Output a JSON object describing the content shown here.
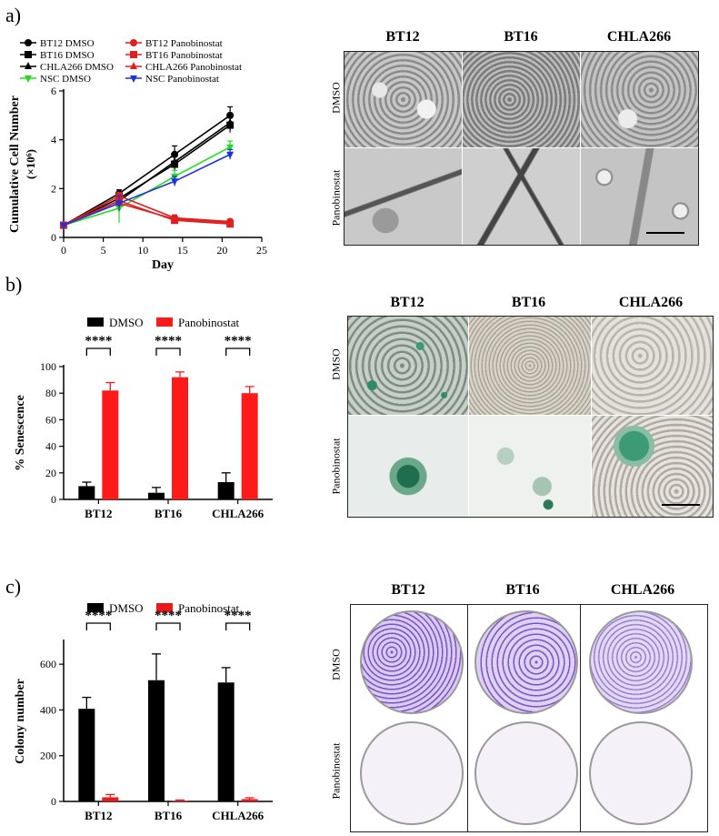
{
  "panel_labels": {
    "a": "a)",
    "b": "b)",
    "c": "c)"
  },
  "micrograph_panels": {
    "a": {
      "columns": [
        "BT12",
        "BT16",
        "CHLA266"
      ],
      "rows": [
        "DMSO",
        "Panobinostat"
      ]
    },
    "b": {
      "columns": [
        "BT12",
        "BT16",
        "CHLA266"
      ],
      "rows": [
        "DMSO",
        "Panobinostat"
      ]
    },
    "c": {
      "columns": [
        "BT12",
        "BT16",
        "CHLA266"
      ],
      "rows": [
        "DMSO",
        "Panobinostat"
      ]
    }
  },
  "chart_data": [
    {
      "type": "line",
      "xlabel": "Day",
      "ylabel": "Cumulative Cell Number",
      "ylabel_unit": "(×10⁶)",
      "xlim": [
        0,
        25
      ],
      "ylim": [
        0,
        6
      ],
      "xticks": [
        0,
        5,
        10,
        15,
        20,
        25
      ],
      "yticks": [
        0,
        2,
        4,
        6
      ],
      "x": [
        0,
        7,
        14,
        21
      ],
      "legend_position": "top",
      "series": [
        {
          "name": "BT12 DMSO",
          "color": "#000000",
          "marker": "circle",
          "values": [
            0.5,
            1.8,
            3.4,
            5.0
          ],
          "err": [
            0.05,
            0.15,
            0.35,
            0.35
          ]
        },
        {
          "name": "BT16 DMSO",
          "color": "#000000",
          "marker": "square",
          "values": [
            0.5,
            1.6,
            3.0,
            4.6
          ],
          "err": [
            0.05,
            0.15,
            0.3,
            0.3
          ]
        },
        {
          "name": "CHLA266 DMSO",
          "color": "#000000",
          "marker": "triangle",
          "values": [
            0.5,
            1.5,
            3.1,
            4.7
          ],
          "err": [
            0.05,
            0.15,
            0.3,
            0.3
          ]
        },
        {
          "name": "NSC DMSO",
          "color": "#22dd22",
          "marker": "triangle-down",
          "values": [
            0.5,
            1.2,
            2.5,
            3.7
          ],
          "err": [
            0.05,
            0.6,
            0.25,
            0.25
          ]
        },
        {
          "name": "BT12 Panobinostat",
          "color": "#e02020",
          "marker": "circle",
          "values": [
            0.5,
            1.7,
            0.8,
            0.65
          ],
          "err": [
            0.05,
            0.15,
            0.12,
            0.1
          ]
        },
        {
          "name": "BT16 Panobinostat",
          "color": "#e02020",
          "marker": "square",
          "values": [
            0.5,
            1.5,
            0.7,
            0.55
          ],
          "err": [
            0.05,
            0.15,
            0.1,
            0.1
          ]
        },
        {
          "name": "CHLA266 Panobinostat",
          "color": "#e02020",
          "marker": "triangle",
          "values": [
            0.5,
            1.4,
            0.75,
            0.6
          ],
          "err": [
            0.05,
            0.15,
            0.1,
            0.1
          ]
        },
        {
          "name": "NSC Panobinostat",
          "color": "#2030dd",
          "marker": "triangle-down",
          "values": [
            0.5,
            1.4,
            2.3,
            3.4
          ],
          "err": [
            0.05,
            0.3,
            0.2,
            0.2
          ]
        }
      ]
    },
    {
      "type": "bar",
      "ylabel": "% Senescence",
      "ylim": [
        0,
        100
      ],
      "yticks": [
        0,
        20,
        40,
        60,
        80,
        100
      ],
      "categories": [
        "BT12",
        "BT16",
        "CHLA266"
      ],
      "significance": "****",
      "legend_position": "top",
      "series": [
        {
          "name": "DMSO",
          "color": "#000000",
          "values": [
            10,
            5,
            13
          ],
          "err": [
            3,
            4,
            7
          ]
        },
        {
          "name": "Panobinostat",
          "color": "#ff1a1a",
          "values": [
            82,
            92,
            80
          ],
          "err": [
            6,
            4,
            5
          ]
        }
      ]
    },
    {
      "type": "bar",
      "ylabel": "Colony number",
      "ylim": [
        0,
        700
      ],
      "yticks": [
        0,
        200,
        400,
        600
      ],
      "categories": [
        "BT12",
        "BT16",
        "CHLA266"
      ],
      "significance": "****",
      "legend_position": "top",
      "series": [
        {
          "name": "DMSO",
          "color": "#000000",
          "values": [
            405,
            530,
            520
          ],
          "err": [
            50,
            115,
            65
          ]
        },
        {
          "name": "Panobinostat",
          "color": "#e81a1a",
          "values": [
            18,
            3,
            10
          ],
          "err": [
            12,
            3,
            6
          ]
        }
      ]
    }
  ]
}
